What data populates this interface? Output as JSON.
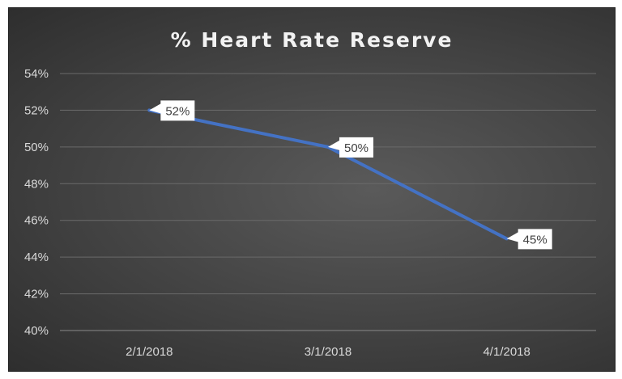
{
  "chart_data": {
    "type": "line",
    "title": "% Heart Rate Reserve",
    "categories": [
      "2/1/2018",
      "3/1/2018",
      "4/1/2018"
    ],
    "values": [
      52,
      50,
      45
    ],
    "data_labels": [
      "52%",
      "50%",
      "45%"
    ],
    "ylim": [
      40,
      54
    ],
    "yticks": [
      "40%",
      "42%",
      "44%",
      "46%",
      "48%",
      "50%",
      "52%",
      "54%"
    ],
    "xlabel": "",
    "ylabel": "",
    "grid": true,
    "legend": "none",
    "colors": {
      "line": "#4472c4",
      "background": "#404040",
      "text": "#d9d9d9"
    }
  }
}
